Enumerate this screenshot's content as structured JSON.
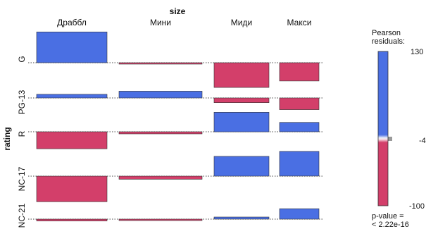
{
  "chart_data": {
    "type": "association",
    "row_variable": "rating",
    "col_variable": "size",
    "columns": [
      "Драббл",
      "Мини",
      "Миди",
      "Макси"
    ],
    "rows": [
      "G",
      "PG-13",
      "R",
      "NC-17",
      "NC-21"
    ],
    "residuals": [
      [
        118,
        -4,
        -95,
        -70
      ],
      [
        14,
        26,
        -18,
        -45
      ],
      [
        -65,
        -8,
        75,
        36
      ],
      [
        -98,
        -12,
        76,
        95
      ],
      [
        -7,
        -3,
        8,
        40
      ]
    ],
    "legend": {
      "title": "Pearson residuals:",
      "max_label": "130",
      "mid_label": "-4",
      "min_label": "-100",
      "max": 130,
      "mid": -4,
      "min": -100,
      "positive_color": "#4a6fe3",
      "negative_color": "#d33f6a"
    },
    "p_value_label": "p-value =",
    "p_value": "< 2.22e-16"
  }
}
